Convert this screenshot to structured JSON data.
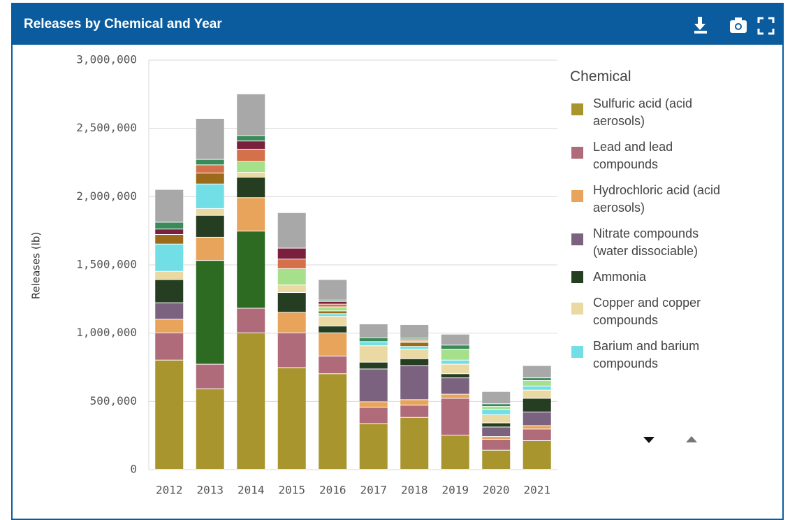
{
  "chart_data": {
    "type": "stacked-bar",
    "title": "Releases by Chemical and Year",
    "y_label": "Releases (lb)",
    "legend_title": "Chemical",
    "categories": [
      "2012",
      "2013",
      "2014",
      "2015",
      "2016",
      "2017",
      "2018",
      "2019",
      "2020",
      "2021"
    ],
    "ylim": [
      0,
      3000000
    ],
    "yticks": [
      {
        "value": 0,
        "label": "0"
      },
      {
        "value": 500000,
        "label": "500,000"
      },
      {
        "value": 1000000,
        "label": "1,000,000"
      },
      {
        "value": 1500000,
        "label": "1,500,000"
      },
      {
        "value": 2000000,
        "label": "2,000,000"
      },
      {
        "value": 2500000,
        "label": "2,500,000"
      },
      {
        "value": 3000000,
        "label": "3,000,000"
      }
    ],
    "grid": true,
    "series": [
      {
        "name": "Sulfuric acid (acid aerosols)",
        "color": "#a8952e",
        "values": [
          800000,
          590000,
          1000000,
          745000,
          700000,
          335000,
          380000,
          250000,
          140000,
          210000
        ]
      },
      {
        "name": "Lead and lead compounds",
        "color": "#b06b7a",
        "values": [
          200000,
          180000,
          180000,
          255000,
          130000,
          120000,
          90000,
          270000,
          80000,
          85000
        ]
      },
      {
        "color": "#2d6a22",
        "values": [
          0,
          760000,
          565000,
          0,
          0,
          0,
          0,
          0,
          0,
          0
        ]
      },
      {
        "name": "Hydrochloric acid (acid aerosols)",
        "color": "#e8a45a",
        "values": [
          100000,
          170000,
          245000,
          150000,
          170000,
          40000,
          40000,
          30000,
          20000,
          25000
        ]
      },
      {
        "name": "Nitrate compounds (water dissociable)",
        "color": "#7b6380",
        "values": [
          120000,
          0,
          0,
          0,
          0,
          240000,
          250000,
          120000,
          70000,
          100000
        ]
      },
      {
        "name": "Ammonia",
        "color": "#253d20",
        "values": [
          170000,
          160000,
          150000,
          145000,
          50000,
          50000,
          50000,
          30000,
          30000,
          100000
        ]
      },
      {
        "name": "Copper and copper compounds",
        "color": "#ead9a2",
        "values": [
          60000,
          50000,
          35000,
          55000,
          70000,
          120000,
          70000,
          70000,
          60000,
          60000
        ]
      },
      {
        "name": "Barium and barium compounds",
        "color": "#72dfe6",
        "values": [
          200000,
          180000,
          0,
          0,
          20000,
          30000,
          20000,
          30000,
          40000,
          30000
        ]
      },
      {
        "color": "#9b6a1a",
        "values": [
          70000,
          80000,
          0,
          0,
          20000,
          0,
          30000,
          0,
          0,
          0
        ]
      },
      {
        "color": "#a6e08a",
        "values": [
          0,
          0,
          80000,
          120000,
          30000,
          0,
          10000,
          80000,
          20000,
          40000
        ]
      },
      {
        "color": "#d4704a",
        "values": [
          0,
          60000,
          90000,
          70000,
          20000,
          0,
          10000,
          0,
          0,
          0
        ]
      },
      {
        "color": "#7a1f3d",
        "values": [
          40000,
          0,
          60000,
          80000,
          20000,
          0,
          0,
          0,
          0,
          0
        ]
      },
      {
        "color": "#3a8a5a",
        "values": [
          50000,
          40000,
          40000,
          0,
          10000,
          30000,
          10000,
          30000,
          20000,
          20000
        ]
      },
      {
        "color": "#a8a8a8",
        "values": [
          240000,
          300000,
          305000,
          260000,
          150000,
          100000,
          100000,
          80000,
          90000,
          90000
        ]
      }
    ]
  }
}
